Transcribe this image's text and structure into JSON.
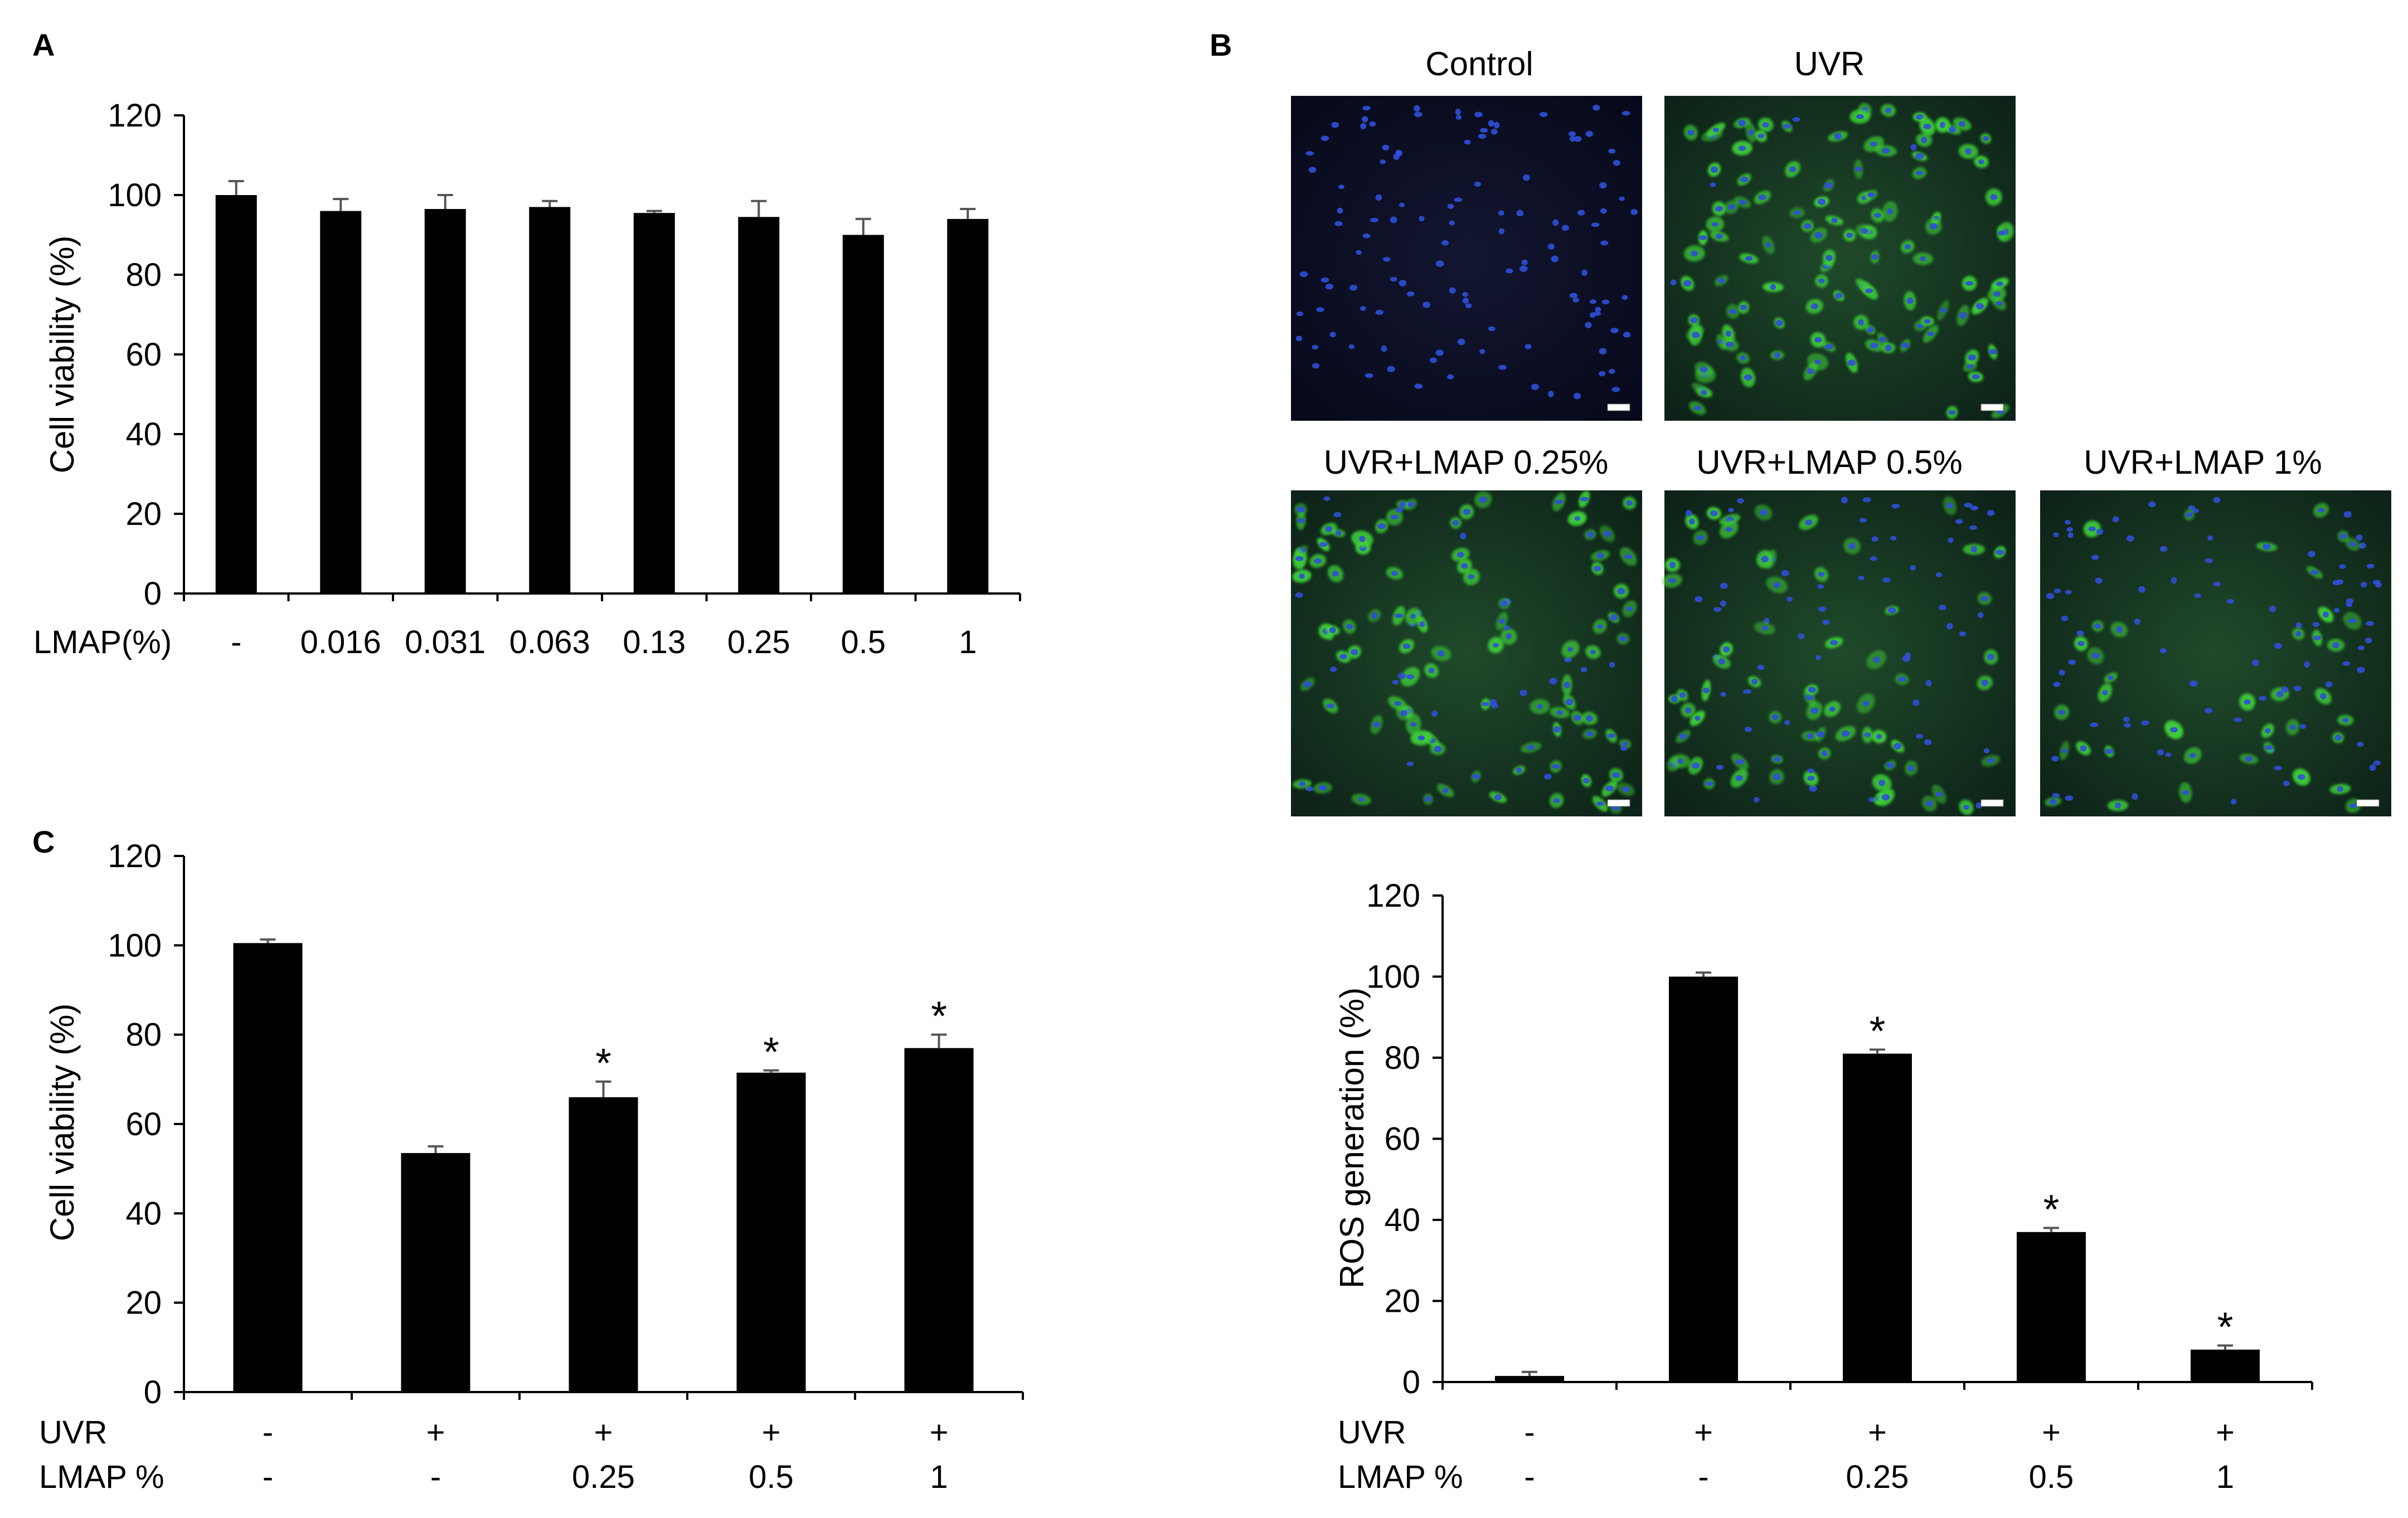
{
  "panels": {
    "A": "A",
    "B": "B",
    "C": "C"
  },
  "colors": {
    "bar": "#000000",
    "error_bar": "#555555",
    "cell_background": "#0c0f22",
    "nuclei": "#2f4fd8",
    "ros_stain": "#3fd23a"
  },
  "micrographs": [
    {
      "label": "Control",
      "green_level": 0.02
    },
    {
      "label": "UVR",
      "green_level": 0.95
    },
    {
      "label": "UVR+LMAP 0.25%",
      "green_level": 0.8
    },
    {
      "label": "UVR+LMAP 0.5%",
      "green_level": 0.55
    },
    {
      "label": "UVR+LMAP 1%",
      "green_level": 0.3
    }
  ],
  "chart_data": [
    {
      "id": "A",
      "type": "bar",
      "ylabel": "Cell viability (%)",
      "ylim": [
        0,
        120
      ],
      "yticks": [
        "0",
        "20",
        "40",
        "60",
        "80",
        "100",
        "120"
      ],
      "row_labels": [
        "LMAP(%)"
      ],
      "categories": [
        "-",
        "0.016",
        "0.031",
        "0.063",
        "0.13",
        "0.25",
        "0.5",
        "1"
      ],
      "values": [
        100,
        96,
        96.5,
        97,
        95.5,
        94.5,
        90,
        94
      ],
      "errors": [
        3.5,
        3,
        3.5,
        1.5,
        0.5,
        4,
        4,
        2.5
      ],
      "significant": [
        false,
        false,
        false,
        false,
        false,
        false,
        false,
        false
      ],
      "significance_marker": "*"
    },
    {
      "id": "C",
      "type": "bar",
      "ylabel": "Cell viability (%)",
      "ylim": [
        0,
        120
      ],
      "yticks": [
        "0",
        "20",
        "40",
        "60",
        "80",
        "100",
        "120"
      ],
      "row_labels": [
        "UVR",
        "LMAP %"
      ],
      "rows": [
        [
          "-",
          "+",
          "+",
          "+",
          "+"
        ],
        [
          "-",
          "-",
          "0.25",
          "0.5",
          "1"
        ]
      ],
      "values": [
        100.5,
        53.5,
        66,
        71.5,
        77
      ],
      "errors": [
        0.8,
        1.5,
        3.5,
        0.5,
        3
      ],
      "significant": [
        false,
        false,
        true,
        true,
        true
      ],
      "significance_marker": "*"
    },
    {
      "id": "D",
      "type": "bar",
      "ylabel": "ROS generation (%)",
      "ylim": [
        0,
        120
      ],
      "yticks": [
        "0",
        "20",
        "40",
        "60",
        "80",
        "100",
        "120"
      ],
      "row_labels": [
        "UVR",
        "LMAP %"
      ],
      "rows": [
        [
          "-",
          "+",
          "+",
          "+",
          "+"
        ],
        [
          "-",
          "-",
          "0.25",
          "0.5",
          "1"
        ]
      ],
      "values": [
        1.5,
        100,
        81,
        37,
        8
      ],
      "errors": [
        1,
        1,
        1,
        1,
        1
      ],
      "significant": [
        false,
        false,
        true,
        true,
        true
      ],
      "significance_marker": "*"
    }
  ]
}
